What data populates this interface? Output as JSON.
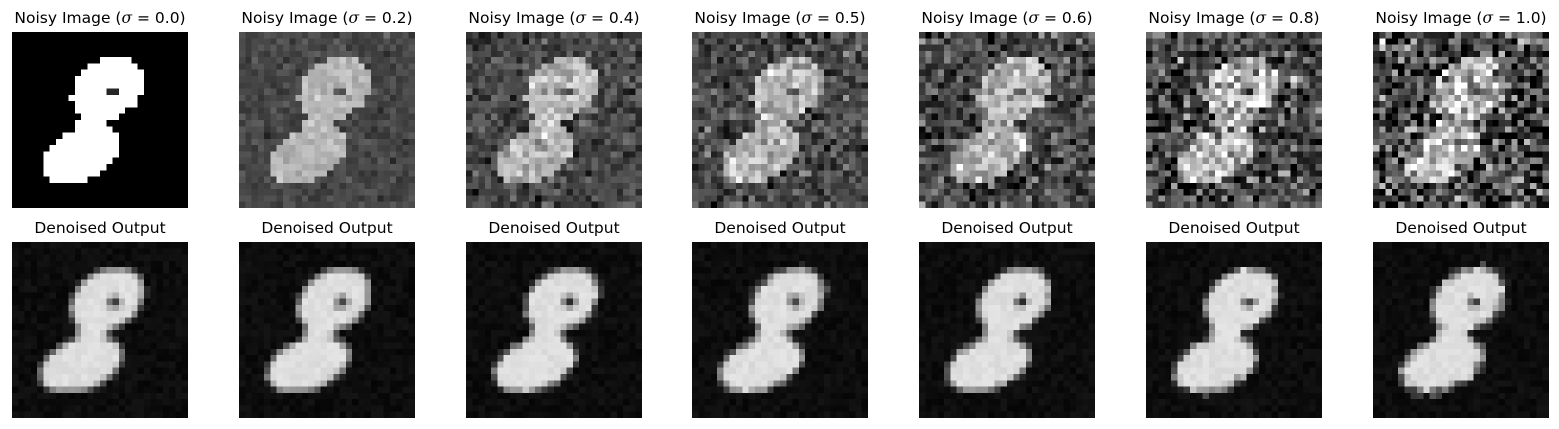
{
  "figure": {
    "rows": [
      {
        "row": "noisy",
        "panels": [
          {
            "prefix": "Noisy Image (",
            "symbol": "σ",
            "suffix": " = 0.0)",
            "sigma": 0.0
          },
          {
            "prefix": "Noisy Image (",
            "symbol": "σ",
            "suffix": " = 0.2)",
            "sigma": 0.2
          },
          {
            "prefix": "Noisy Image (",
            "symbol": "σ",
            "suffix": " = 0.4)",
            "sigma": 0.4
          },
          {
            "prefix": "Noisy Image (",
            "symbol": "σ",
            "suffix": " = 0.5)",
            "sigma": 0.5
          },
          {
            "prefix": "Noisy Image (",
            "symbol": "σ",
            "suffix": " = 0.6)",
            "sigma": 0.6
          },
          {
            "prefix": "Noisy Image (",
            "symbol": "σ",
            "suffix": " = 0.8)",
            "sigma": 0.8
          },
          {
            "prefix": "Noisy Image (",
            "symbol": "σ",
            "suffix": " = 1.0)",
            "sigma": 1.0
          }
        ]
      },
      {
        "row": "denoised",
        "panels": [
          {
            "title": "Denoised Output",
            "sigma": 0.0
          },
          {
            "title": "Denoised Output",
            "sigma": 0.2
          },
          {
            "title": "Denoised Output",
            "sigma": 0.4
          },
          {
            "title": "Denoised Output",
            "sigma": 0.5
          },
          {
            "title": "Denoised Output",
            "sigma": 0.6
          },
          {
            "title": "Denoised Output",
            "sigma": 0.8
          },
          {
            "title": "Denoised Output",
            "sigma": 1.0
          }
        ]
      }
    ]
  }
}
